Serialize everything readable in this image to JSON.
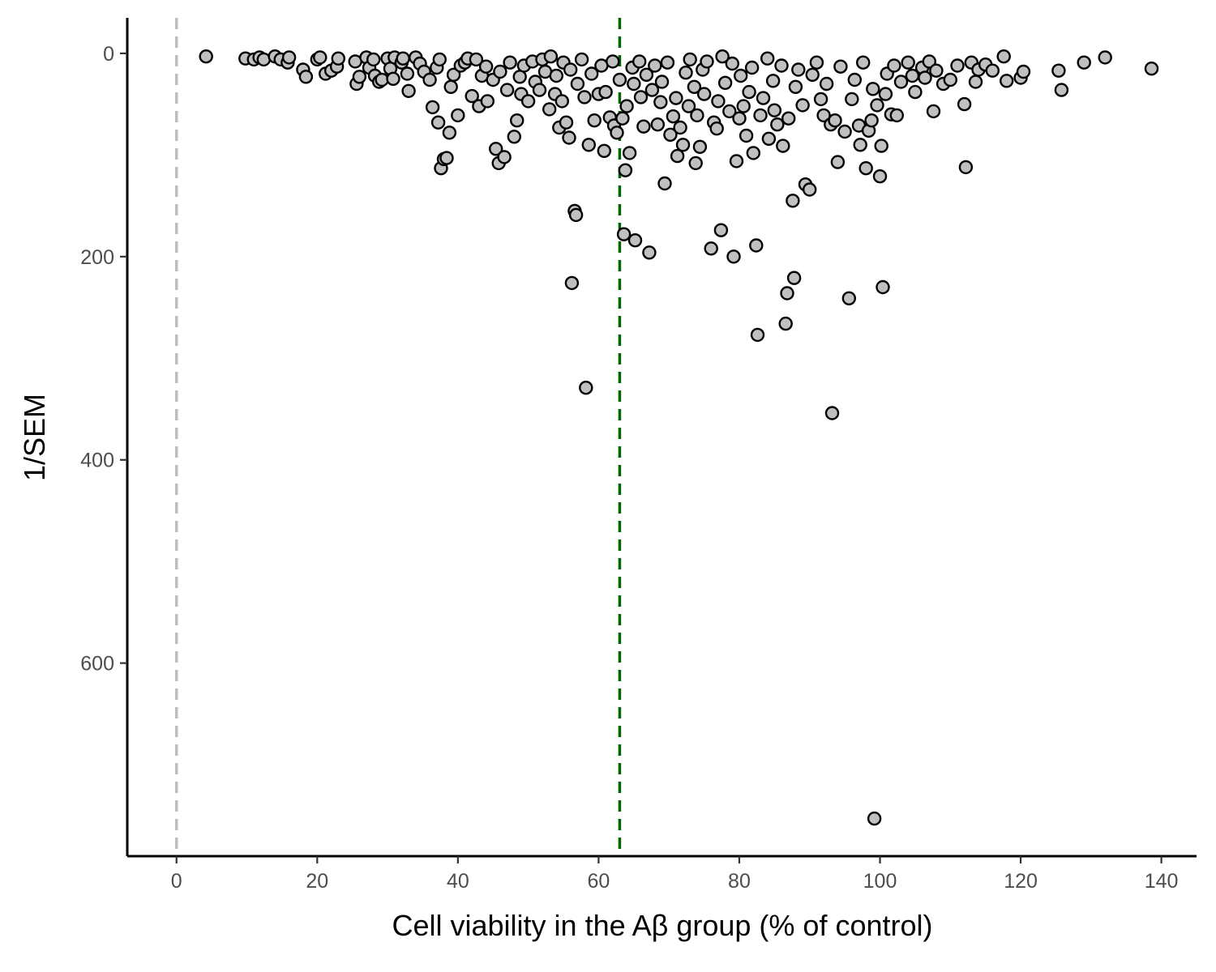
{
  "chart_data": {
    "type": "scatter",
    "title": "",
    "xlabel": "Cell viability in the Aβ group (% of control)",
    "ylabel": "1/SEM",
    "xlim": [
      -7,
      145
    ],
    "ylim": [
      -35,
      790
    ],
    "y_reversed": true,
    "x_ticks": [
      {
        "value": 0,
        "label": "0"
      },
      {
        "value": 20,
        "label": "20"
      },
      {
        "value": 40,
        "label": "40"
      },
      {
        "value": 60,
        "label": "60"
      },
      {
        "value": 80,
        "label": "80"
      },
      {
        "value": 100,
        "label": "100"
      },
      {
        "value": 120,
        "label": "120"
      },
      {
        "value": 140,
        "label": "140"
      }
    ],
    "y_ticks": [
      {
        "value": 0,
        "label": "0"
      },
      {
        "value": 200,
        "label": "200"
      },
      {
        "value": 400,
        "label": "400"
      },
      {
        "value": 600,
        "label": "600"
      }
    ],
    "grid": false,
    "reference_lines": [
      {
        "orientation": "vertical",
        "x": 0,
        "color": "#bebebe",
        "style": "dashed"
      },
      {
        "orientation": "vertical",
        "x": 63,
        "color": "#006400",
        "style": "dashed"
      }
    ],
    "marker": {
      "fill": "#c0c0c0",
      "stroke": "#000000"
    },
    "points": [
      [
        4.2,
        3
      ],
      [
        9.8,
        5
      ],
      [
        11,
        6
      ],
      [
        11.8,
        4
      ],
      [
        12.4,
        6
      ],
      [
        14,
        3
      ],
      [
        14.8,
        6
      ],
      [
        15.8,
        9
      ],
      [
        16,
        4
      ],
      [
        18,
        16
      ],
      [
        18.4,
        23
      ],
      [
        20,
        6
      ],
      [
        20.4,
        4
      ],
      [
        21.2,
        20
      ],
      [
        22,
        17
      ],
      [
        22.8,
        13
      ],
      [
        23,
        5
      ],
      [
        25.4,
        8
      ],
      [
        25.6,
        30
      ],
      [
        26,
        23
      ],
      [
        27,
        4
      ],
      [
        27.4,
        14
      ],
      [
        28,
        6
      ],
      [
        28.2,
        22
      ],
      [
        28.8,
        28
      ],
      [
        29.2,
        26
      ],
      [
        30,
        5
      ],
      [
        30.4,
        15
      ],
      [
        30.8,
        25
      ],
      [
        31,
        4
      ],
      [
        32,
        9
      ],
      [
        32.2,
        5
      ],
      [
        32.8,
        20
      ],
      [
        33,
        37
      ],
      [
        34,
        4
      ],
      [
        34.6,
        10
      ],
      [
        35.2,
        18
      ],
      [
        36,
        26
      ],
      [
        36.4,
        53
      ],
      [
        37,
        14
      ],
      [
        37.2,
        68
      ],
      [
        37.4,
        6
      ],
      [
        37.6,
        113
      ],
      [
        38,
        104
      ],
      [
        38.4,
        103
      ],
      [
        38.8,
        78
      ],
      [
        39,
        33
      ],
      [
        39.4,
        21
      ],
      [
        40,
        61
      ],
      [
        40.4,
        12
      ],
      [
        41,
        9
      ],
      [
        41.4,
        5
      ],
      [
        42,
        42
      ],
      [
        42.6,
        6
      ],
      [
        43,
        52
      ],
      [
        43.4,
        22
      ],
      [
        44,
        13
      ],
      [
        44.2,
        47
      ],
      [
        45,
        26
      ],
      [
        45.4,
        94
      ],
      [
        45.8,
        108
      ],
      [
        46,
        18
      ],
      [
        46.6,
        102
      ],
      [
        47,
        36
      ],
      [
        47.4,
        9
      ],
      [
        48,
        82
      ],
      [
        48.4,
        66
      ],
      [
        48.8,
        23
      ],
      [
        49,
        40
      ],
      [
        49.4,
        12
      ],
      [
        50,
        47
      ],
      [
        50.6,
        8
      ],
      [
        51,
        28
      ],
      [
        51.6,
        36
      ],
      [
        52,
        6
      ],
      [
        52.4,
        18
      ],
      [
        53,
        55
      ],
      [
        53.2,
        3
      ],
      [
        53.8,
        40
      ],
      [
        54,
        22
      ],
      [
        54.4,
        73
      ],
      [
        54.8,
        47
      ],
      [
        55,
        9
      ],
      [
        55.4,
        68
      ],
      [
        55.8,
        83
      ],
      [
        56,
        16
      ],
      [
        56.2,
        226
      ],
      [
        56.6,
        155
      ],
      [
        56.8,
        159
      ],
      [
        57,
        30
      ],
      [
        57.6,
        6
      ],
      [
        58,
        43
      ],
      [
        58.2,
        329
      ],
      [
        58.6,
        90
      ],
      [
        59,
        20
      ],
      [
        59.4,
        66
      ],
      [
        60,
        40
      ],
      [
        60.4,
        12
      ],
      [
        60.8,
        96
      ],
      [
        61,
        38
      ],
      [
        61.6,
        63
      ],
      [
        62,
        8
      ],
      [
        62.2,
        71
      ],
      [
        62.6,
        78
      ],
      [
        63,
        26
      ],
      [
        63.4,
        64
      ],
      [
        63.6,
        178
      ],
      [
        63.8,
        115
      ],
      [
        64,
        52
      ],
      [
        64.4,
        98
      ],
      [
        64.8,
        14
      ],
      [
        65,
        30
      ],
      [
        65.2,
        184
      ],
      [
        65.8,
        8
      ],
      [
        66,
        43
      ],
      [
        66.4,
        72
      ],
      [
        66.8,
        21
      ],
      [
        67.2,
        196
      ],
      [
        67.6,
        36
      ],
      [
        68,
        12
      ],
      [
        68.4,
        70
      ],
      [
        68.8,
        48
      ],
      [
        69,
        28
      ],
      [
        69.4,
        128
      ],
      [
        69.8,
        9
      ],
      [
        70.2,
        80
      ],
      [
        70.6,
        62
      ],
      [
        71,
        44
      ],
      [
        71.2,
        101
      ],
      [
        71.6,
        73
      ],
      [
        72,
        90
      ],
      [
        72.4,
        19
      ],
      [
        72.8,
        52
      ],
      [
        73,
        6
      ],
      [
        73.6,
        33
      ],
      [
        73.8,
        108
      ],
      [
        74,
        61
      ],
      [
        74.4,
        92
      ],
      [
        74.8,
        16
      ],
      [
        75,
        40
      ],
      [
        75.4,
        8
      ],
      [
        76,
        192
      ],
      [
        76.4,
        68
      ],
      [
        76.8,
        74
      ],
      [
        77,
        47
      ],
      [
        77.4,
        174
      ],
      [
        77.6,
        3
      ],
      [
        78,
        29
      ],
      [
        78.6,
        57
      ],
      [
        79,
        10
      ],
      [
        79.2,
        200
      ],
      [
        79.6,
        106
      ],
      [
        80,
        64
      ],
      [
        80.2,
        22
      ],
      [
        80.6,
        52
      ],
      [
        81,
        81
      ],
      [
        81.4,
        38
      ],
      [
        81.8,
        14
      ],
      [
        82,
        98
      ],
      [
        82.4,
        189
      ],
      [
        82.6,
        277
      ],
      [
        83,
        61
      ],
      [
        83.4,
        44
      ],
      [
        84,
        5
      ],
      [
        84.2,
        84
      ],
      [
        84.8,
        27
      ],
      [
        85,
        56
      ],
      [
        85.4,
        70
      ],
      [
        86,
        12
      ],
      [
        86.2,
        91
      ],
      [
        86.6,
        266
      ],
      [
        86.8,
        236
      ],
      [
        87,
        64
      ],
      [
        87.6,
        145
      ],
      [
        87.8,
        221
      ],
      [
        88,
        33
      ],
      [
        88.4,
        16
      ],
      [
        89,
        51
      ],
      [
        89.4,
        129
      ],
      [
        90,
        134
      ],
      [
        90.4,
        21
      ],
      [
        91,
        9
      ],
      [
        91.6,
        45
      ],
      [
        92,
        61
      ],
      [
        92.4,
        30
      ],
      [
        93,
        70
      ],
      [
        93.2,
        354
      ],
      [
        93.6,
        66
      ],
      [
        94,
        107
      ],
      [
        94.4,
        13
      ],
      [
        95,
        77
      ],
      [
        95.6,
        241
      ],
      [
        96,
        45
      ],
      [
        96.4,
        26
      ],
      [
        97,
        71
      ],
      [
        97.2,
        90
      ],
      [
        97.6,
        9
      ],
      [
        98,
        113
      ],
      [
        98.4,
        76
      ],
      [
        98.8,
        66
      ],
      [
        99,
        35
      ],
      [
        99.2,
        753
      ],
      [
        99.6,
        51
      ],
      [
        100,
        121
      ],
      [
        100.2,
        91
      ],
      [
        100.4,
        230
      ],
      [
        100.8,
        40
      ],
      [
        101,
        20
      ],
      [
        101.6,
        60
      ],
      [
        102,
        12
      ],
      [
        102.4,
        61
      ],
      [
        103,
        28
      ],
      [
        104,
        9
      ],
      [
        104.6,
        22
      ],
      [
        105,
        38
      ],
      [
        106,
        14
      ],
      [
        106.4,
        24
      ],
      [
        107,
        8
      ],
      [
        107.6,
        57
      ],
      [
        108,
        17
      ],
      [
        109,
        30
      ],
      [
        110,
        26
      ],
      [
        111,
        12
      ],
      [
        112,
        50
      ],
      [
        112.2,
        112
      ],
      [
        113,
        9
      ],
      [
        113.6,
        28
      ],
      [
        114,
        16
      ],
      [
        115,
        11
      ],
      [
        116,
        17
      ],
      [
        117.6,
        3
      ],
      [
        118,
        27
      ],
      [
        120,
        24
      ],
      [
        120.4,
        18
      ],
      [
        125.4,
        17
      ],
      [
        125.8,
        36
      ],
      [
        129,
        9
      ],
      [
        132,
        4
      ],
      [
        138.6,
        15
      ]
    ]
  }
}
